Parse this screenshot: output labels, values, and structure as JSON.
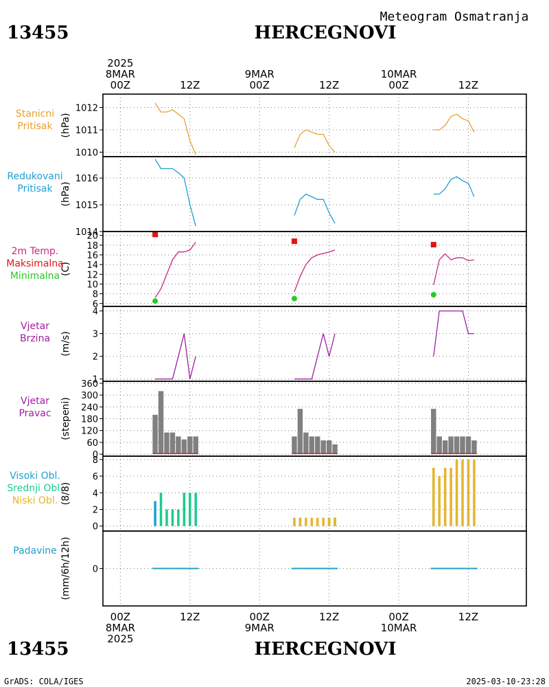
{
  "header": {
    "station_id": "13455",
    "station_name": "HERCEGNOVI",
    "subtitle": "Meteogram Osmatranja"
  },
  "footer": {
    "credit": "GrADS: COLA/IGES",
    "timestamp": "2025-03-10-23:28"
  },
  "time_axis": {
    "top_labels": [
      {
        "hours": 0,
        "lines": [
          "2025",
          "8MAR",
          "00Z"
        ]
      },
      {
        "hours": 12,
        "lines": [
          "12Z"
        ]
      },
      {
        "hours": 24,
        "lines": [
          "9MAR",
          "00Z"
        ]
      },
      {
        "hours": 36,
        "lines": [
          "12Z"
        ]
      },
      {
        "hours": 48,
        "lines": [
          "10MAR",
          "00Z"
        ]
      },
      {
        "hours": 60,
        "lines": [
          "12Z"
        ]
      }
    ],
    "bottom_labels": [
      {
        "hours": 0,
        "lines": [
          "00Z",
          "8MAR",
          "2025"
        ]
      },
      {
        "hours": 12,
        "lines": [
          "12Z"
        ]
      },
      {
        "hours": 24,
        "lines": [
          "00Z",
          "9MAR"
        ]
      },
      {
        "hours": 36,
        "lines": [
          "12Z"
        ]
      },
      {
        "hours": 48,
        "lines": [
          "00Z",
          "10MAR"
        ]
      },
      {
        "hours": 60,
        "lines": [
          "12Z"
        ]
      }
    ],
    "range_hours": [
      -3,
      70
    ],
    "grid_every_hours": 6
  },
  "colors": {
    "station_pressure": "#e6a030",
    "reduced_pressure": "#1ea0d2",
    "temperature": "#c8287a",
    "tmax": "#e01414",
    "tmin": "#28c828",
    "wind": "#a01ea0",
    "wind_dir_bar": "#808080",
    "wind_dir_base": "#c83232",
    "cloud_high": "#1ea0d2",
    "cloud_mid": "#1ecc8c",
    "cloud_low": "#e6b430",
    "precip": "#1ea0c8"
  },
  "chart_data": [
    {
      "id": "station_pressure",
      "type": "line",
      "labels": [
        "Stanicni",
        "Pritisak"
      ],
      "label_color": "#e6a030",
      "ylabel": "(hPa)",
      "ylim": [
        1009.8,
        1012.6
      ],
      "yticks": [
        1010,
        1011,
        1012
      ],
      "series": [
        {
          "color": "#e6a030",
          "x": [
            6,
            7,
            8,
            9,
            10,
            11,
            12,
            13
          ],
          "y": [
            1012.2,
            1011.8,
            1011.8,
            1011.9,
            1011.7,
            1011.5,
            1010.5,
            1009.9
          ]
        },
        {
          "color": "#e6a030",
          "x": [
            30,
            31,
            32,
            33,
            34,
            35,
            36,
            37
          ],
          "y": [
            1010.2,
            1010.8,
            1011.0,
            1010.9,
            1010.8,
            1010.8,
            1010.3,
            1010.0
          ]
        },
        {
          "color": "#e6a030",
          "x": [
            54,
            55,
            56,
            57,
            58,
            59,
            60,
            61
          ],
          "y": [
            1011.0,
            1011.0,
            1011.2,
            1011.6,
            1011.7,
            1011.5,
            1011.4,
            1010.9
          ]
        }
      ]
    },
    {
      "id": "reduced_pressure",
      "type": "line",
      "labels": [
        "Redukovani",
        "Pritisak"
      ],
      "label_color": "#1ea0d2",
      "ylabel": "(hPa)",
      "ylim": [
        1014.0,
        1016.8
      ],
      "yticks": [
        1014,
        1015,
        1016
      ],
      "series": [
        {
          "color": "#1ea0d2",
          "x": [
            6,
            7,
            8,
            9,
            10,
            11,
            12,
            13
          ],
          "y": [
            1016.7,
            1016.35,
            1016.35,
            1016.35,
            1016.2,
            1016.0,
            1015.0,
            1014.2
          ]
        },
        {
          "color": "#1ea0d2",
          "x": [
            30,
            31,
            32,
            33,
            34,
            35,
            36,
            37
          ],
          "y": [
            1014.6,
            1015.2,
            1015.4,
            1015.3,
            1015.2,
            1015.2,
            1014.7,
            1014.3
          ]
        },
        {
          "color": "#1ea0d2",
          "x": [
            54,
            55,
            56,
            57,
            58,
            59,
            60,
            61
          ],
          "y": [
            1015.4,
            1015.4,
            1015.6,
            1015.95,
            1016.05,
            1015.9,
            1015.8,
            1015.3
          ]
        }
      ]
    },
    {
      "id": "temperature",
      "type": "line",
      "labels": [
        "2m Temp.",
        "Maksimalna",
        "Minimalna"
      ],
      "label_colors": [
        "#c8287a",
        "#e01414",
        "#28c828"
      ],
      "ylabel": "(C)",
      "ylim": [
        5.4,
        20.8
      ],
      "yticks": [
        6,
        8,
        10,
        12,
        14,
        16,
        18,
        20
      ],
      "series": [
        {
          "color": "#c8287a",
          "x": [
            6,
            7,
            8,
            9,
            10,
            11,
            12,
            13
          ],
          "y": [
            7.2,
            9.0,
            12.0,
            15.0,
            16.6,
            16.6,
            17.0,
            18.6
          ]
        },
        {
          "color": "#c8287a",
          "x": [
            30,
            31,
            32,
            33,
            34,
            35,
            36,
            37
          ],
          "y": [
            8.4,
            11.6,
            14.0,
            15.4,
            16.0,
            16.3,
            16.6,
            17.0
          ]
        },
        {
          "color": "#c8287a",
          "x": [
            54,
            55,
            56,
            57,
            58,
            59,
            60,
            61
          ],
          "y": [
            9.8,
            15.0,
            16.2,
            15.0,
            15.4,
            15.4,
            14.8,
            15.0
          ]
        }
      ],
      "points": [
        {
          "label": "Maksimalna",
          "shape": "square",
          "color": "#e01414",
          "x": [
            6,
            30,
            54
          ],
          "y": [
            20.2,
            18.8,
            18.1
          ]
        },
        {
          "label": "Minimalna",
          "shape": "circle",
          "color": "#28c828",
          "x": [
            6,
            30,
            54
          ],
          "y": [
            6.5,
            7.0,
            7.8
          ]
        }
      ]
    },
    {
      "id": "wind_speed",
      "type": "line",
      "labels": [
        "Vjetar",
        "Brzina"
      ],
      "label_color": "#a01ea0",
      "ylabel": "(m/s)",
      "ylim": [
        0.9,
        4.2
      ],
      "yticks": [
        1,
        2,
        3,
        4
      ],
      "series": [
        {
          "color": "#a01ea0",
          "x": [
            6,
            7,
            8,
            9,
            10,
            11,
            12,
            13
          ],
          "y": [
            1,
            1,
            1,
            1,
            2,
            3,
            1,
            2
          ]
        },
        {
          "color": "#a01ea0",
          "x": [
            30,
            31,
            32,
            33,
            34,
            35,
            36,
            37
          ],
          "y": [
            1,
            1,
            1,
            1,
            2,
            3,
            2,
            3
          ]
        },
        {
          "color": "#a01ea0",
          "x": [
            54,
            55,
            56,
            57,
            58,
            59,
            60,
            61
          ],
          "y": [
            2,
            4,
            4,
            4,
            4,
            4,
            3,
            3
          ]
        }
      ]
    },
    {
      "id": "wind_direction",
      "type": "bar",
      "labels": [
        "Vjetar",
        "Pravac"
      ],
      "label_color": "#a01ea0",
      "ylabel": "(stepeni)",
      "ylim": [
        -10,
        370
      ],
      "yticks": [
        0,
        60,
        120,
        180,
        240,
        300,
        360
      ],
      "series": [
        {
          "color": "#808080",
          "x": [
            6,
            7,
            8,
            9,
            10,
            11,
            12,
            13
          ],
          "values": [
            200,
            320,
            110,
            110,
            90,
            75,
            90,
            90
          ]
        },
        {
          "color": "#808080",
          "x": [
            30,
            31,
            32,
            33,
            34,
            35,
            36,
            37
          ],
          "values": [
            90,
            230,
            110,
            90,
            90,
            70,
            70,
            50
          ]
        },
        {
          "color": "#808080",
          "x": [
            54,
            55,
            56,
            57,
            58,
            59,
            60,
            61
          ],
          "values": [
            230,
            90,
            70,
            90,
            90,
            90,
            90,
            70
          ]
        }
      ]
    },
    {
      "id": "clouds",
      "type": "bar",
      "labels": [
        "Visoki Obl.",
        "Srednji Obl.",
        "Niski Obl."
      ],
      "label_colors": [
        "#1ea0d2",
        "#1ecc8c",
        "#e6b430"
      ],
      "ylabel": "(8/8)",
      "ylim": [
        -0.6,
        8.4
      ],
      "yticks": [
        0,
        2,
        4,
        6,
        8
      ],
      "series": [
        {
          "name": "Visoki Obl.",
          "color": "#1ea0d2",
          "x": [
            6,
            7,
            8,
            9,
            10,
            11,
            12,
            13
          ],
          "values": [
            3,
            0,
            0,
            0,
            0,
            0,
            0,
            0
          ]
        },
        {
          "name": "Srednji Obl.",
          "color": "#1ecc8c",
          "x": [
            6,
            7,
            8,
            9,
            10,
            11,
            12,
            13
          ],
          "values": [
            0,
            4,
            2,
            2,
            2,
            4,
            4,
            4
          ]
        },
        {
          "name": "Visoki Obl.",
          "color": "#1ea0d2",
          "x": [
            30,
            31,
            32,
            33,
            34,
            35,
            36,
            37
          ],
          "values": [
            0,
            1,
            0,
            0,
            0,
            0,
            1,
            0
          ]
        },
        {
          "name": "Srednji Obl.",
          "color": "#1ecc8c",
          "x": [
            30,
            31,
            32,
            33,
            34,
            35,
            36,
            37
          ],
          "values": [
            0,
            0,
            0,
            0,
            0,
            0,
            0,
            1
          ]
        },
        {
          "name": "Niski Obl.",
          "color": "#e6b430",
          "x": [
            30,
            31,
            32,
            33,
            34,
            35,
            36,
            37
          ],
          "values": [
            1,
            1,
            1,
            1,
            1,
            1,
            1,
            1
          ]
        },
        {
          "name": "Niski Obl.",
          "color": "#e6b430",
          "x": [
            54,
            55,
            56,
            57,
            58,
            59,
            60,
            61
          ],
          "values": [
            7,
            6,
            7,
            7,
            8,
            8,
            8,
            8
          ]
        }
      ]
    },
    {
      "id": "precipitation",
      "type": "bar",
      "labels": [
        "Padavine"
      ],
      "label_color": "#1ea0c8",
      "ylabel": "(mm/6h/12h)",
      "ylim": [
        -5,
        5
      ],
      "yticks": [
        0
      ],
      "series": [
        {
          "color": "#1ea0c8",
          "x": [
            6,
            7,
            8,
            9,
            10,
            11,
            12,
            13
          ],
          "values": [
            0,
            0,
            0,
            0,
            0,
            0,
            0,
            0
          ]
        },
        {
          "color": "#1ea0c8",
          "x": [
            30,
            31,
            32,
            33,
            34,
            35,
            36,
            37
          ],
          "values": [
            0,
            0,
            0,
            0,
            0,
            0,
            0,
            0
          ]
        },
        {
          "color": "#1ea0c8",
          "x": [
            54,
            55,
            56,
            57,
            58,
            59,
            60,
            61
          ],
          "values": [
            0,
            0,
            0,
            0,
            0,
            0,
            0,
            0
          ]
        }
      ]
    }
  ]
}
